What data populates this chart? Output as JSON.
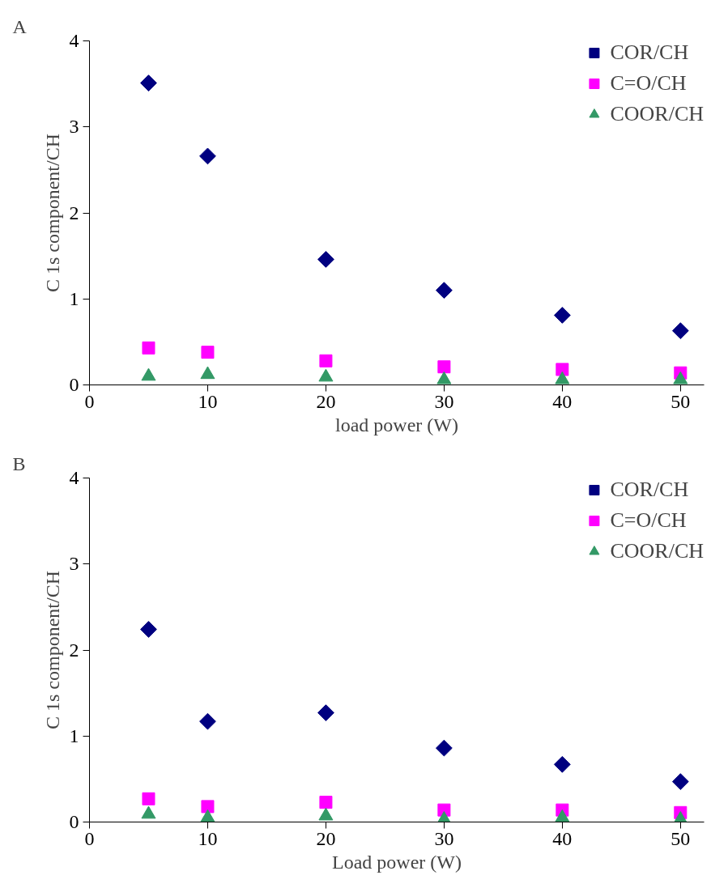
{
  "chart_data": [
    {
      "type": "scatter",
      "title": "A",
      "xlabel": "load power (W)",
      "ylabel": "C 1s component/CH",
      "x": [
        5,
        10,
        20,
        30,
        40,
        50
      ],
      "xlim": [
        0,
        52
      ],
      "xticks": [
        0,
        10,
        20,
        30,
        40,
        50
      ],
      "ylim": [
        0,
        4
      ],
      "yticks": [
        0,
        1,
        2,
        3,
        4
      ],
      "grid": false,
      "legend": "top right",
      "series": [
        {
          "name": "COR/CH",
          "color": "#000080",
          "marker": "diamond",
          "values": [
            3.51,
            2.66,
            1.46,
            1.1,
            0.81,
            0.63
          ]
        },
        {
          "name": "C=O/CH",
          "color": "#ff00ff",
          "marker": "square",
          "values": [
            0.43,
            0.38,
            0.28,
            0.21,
            0.18,
            0.14
          ]
        },
        {
          "name": "COOR/CH",
          "color": "#339966",
          "marker": "triangle",
          "values": [
            0.1,
            0.12,
            0.09,
            0.06,
            0.06,
            0.06
          ]
        }
      ]
    },
    {
      "type": "scatter",
      "title": "B",
      "xlabel": "Load power (W)",
      "ylabel": "C 1s component/CH",
      "x": [
        5,
        10,
        20,
        30,
        40,
        50
      ],
      "xlim": [
        0,
        52
      ],
      "xticks": [
        0,
        10,
        20,
        30,
        40,
        50
      ],
      "ylim": [
        0,
        4
      ],
      "yticks": [
        0,
        1,
        2,
        3,
        4
      ],
      "grid": false,
      "legend": "top right",
      "series": [
        {
          "name": "COR/CH",
          "color": "#000080",
          "marker": "diamond",
          "values": [
            2.24,
            1.17,
            1.27,
            0.86,
            0.67,
            0.47
          ]
        },
        {
          "name": "C=O/CH",
          "color": "#ff00ff",
          "marker": "square",
          "values": [
            0.27,
            0.18,
            0.23,
            0.14,
            0.14,
            0.11
          ]
        },
        {
          "name": "COOR/CH",
          "color": "#339966",
          "marker": "triangle",
          "values": [
            0.09,
            0.05,
            0.07,
            0.03,
            0.05,
            0.03
          ]
        }
      ]
    }
  ]
}
